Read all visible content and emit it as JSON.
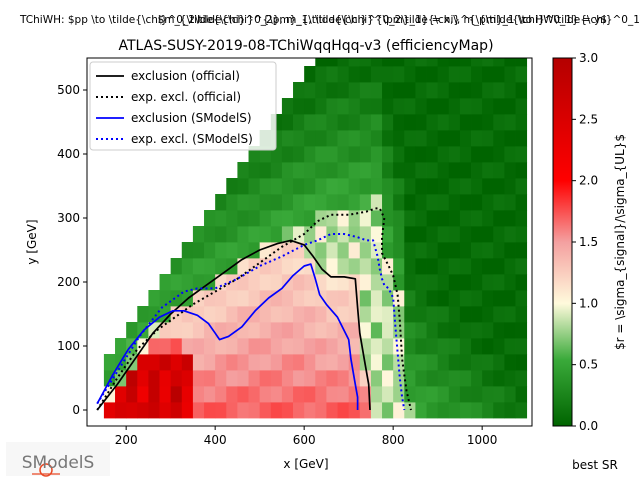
{
  "header": {
    "process": "TChiWH: $pp \\to \\tilde{\\chi}^0_2\\tilde{\\chi}^{\\pm}_1, \\tilde{\\chi}^0_2\\tilde{\\chi}^{\\pm}_1 \\to HW\\tilde{\\chi}^0_1\\tilde{\\chi}^0_1$",
    "mass_axes": "$m_{\\tilde{\\chi}^0_2}, m_{\\tilde{\\chi}^{\\pm}_1} = x,\\, m_{\\tilde{\\chi}^0_1} = y$",
    "best_sr": "best SR",
    "logo_text": "SModelS"
  },
  "chart_data": {
    "type": "heatmap",
    "title": "ATLAS-SUSY-2019-08-TChiWqqHqq-v3 (efficiencyMap)",
    "xlabel": "x [GeV]",
    "ylabel": "y [GeV]",
    "xlim": [
      112,
      1112
    ],
    "ylim": [
      -25,
      550
    ],
    "xticks": [
      200,
      400,
      600,
      800,
      1000
    ],
    "yticks": [
      0,
      100,
      200,
      300,
      400,
      500
    ],
    "grid": false,
    "legend_position": "top-left",
    "colorbar": {
      "label": "$r = \\sigma_{signal}/\\sigma_{UL}$",
      "range": [
        0.0,
        3.0
      ],
      "ticks": [
        0.0,
        0.5,
        1.0,
        1.5,
        2.0,
        2.5,
        3.0
      ],
      "colors": {
        "0": "#006400",
        "1": "#fffadc",
        "2": "#ff0000",
        "3": "#b40000"
      }
    },
    "grid_data": {
      "x_start": 162.5,
      "dx": 25,
      "y_start": -12.5,
      "dy": 25,
      "diagonal_upper_bound": "y <= x - 80 (approx.)",
      "r_levels": [
        {
          "region": "x < 350, y < 80",
          "r": 2.6
        },
        {
          "region": "inside official exclusion",
          "r": 1.4
        },
        {
          "region": "between contours",
          "r": 0.9
        },
        {
          "region": "outside expected exclusion",
          "r": 0.2
        }
      ]
    },
    "series": [
      {
        "name": "exclusion (official)",
        "style": "solid",
        "color": "#000000",
        "x": [
          135,
          180,
          220,
          260,
          300,
          340,
          380,
          420,
          460,
          500,
          540,
          570,
          600,
          620,
          640,
          660,
          690,
          715,
          720,
          725,
          735,
          745,
          748
        ],
        "y": [
          0,
          40,
          80,
          120,
          150,
          175,
          195,
          215,
          235,
          250,
          260,
          265,
          258,
          240,
          220,
          208,
          208,
          205,
          160,
          120,
          80,
          40,
          0
        ]
      },
      {
        "name": "exp. excl. (official)",
        "style": "dotted",
        "color": "#000000",
        "x": [
          135,
          180,
          225,
          270,
          310,
          350,
          400,
          450,
          500,
          550,
          600,
          630,
          660,
          700,
          740,
          760,
          770,
          780,
          775,
          775,
          790,
          800,
          810,
          815,
          820,
          830,
          840
        ],
        "y": [
          0,
          50,
          95,
          125,
          145,
          165,
          185,
          205,
          230,
          255,
          275,
          295,
          305,
          305,
          310,
          315,
          315,
          300,
          270,
          245,
          225,
          210,
          180,
          140,
          80,
          30,
          0
        ]
      },
      {
        "name": "exclusion (SModelS)",
        "style": "solid",
        "color": "#0000ff",
        "x": [
          135,
          170,
          205,
          240,
          275,
          305,
          330,
          360,
          385,
          400,
          410,
          430,
          460,
          490,
          520,
          550,
          575,
          600,
          615,
          625,
          635,
          650,
          675,
          700,
          705,
          715,
          720,
          720
        ],
        "y": [
          10,
          55,
          95,
          125,
          145,
          155,
          155,
          148,
          135,
          120,
          110,
          115,
          130,
          155,
          175,
          190,
          210,
          225,
          228,
          205,
          180,
          165,
          145,
          110,
          80,
          40,
          20,
          0
        ]
      },
      {
        "name": "exp. excl. (SModelS)",
        "style": "dotted",
        "color": "#0000ff",
        "x": [
          135,
          180,
          230,
          280,
          330,
          360,
          400,
          450,
          500,
          550,
          600,
          630,
          660,
          690,
          720,
          740,
          755,
          765,
          770,
          775,
          780,
          790,
          800,
          805,
          810,
          815,
          820,
          825
        ],
        "y": [
          10,
          60,
          115,
          160,
          185,
          190,
          190,
          205,
          225,
          240,
          258,
          265,
          275,
          275,
          270,
          265,
          265,
          240,
          220,
          205,
          195,
          190,
          175,
          130,
          90,
          50,
          20,
          0
        ]
      }
    ]
  }
}
